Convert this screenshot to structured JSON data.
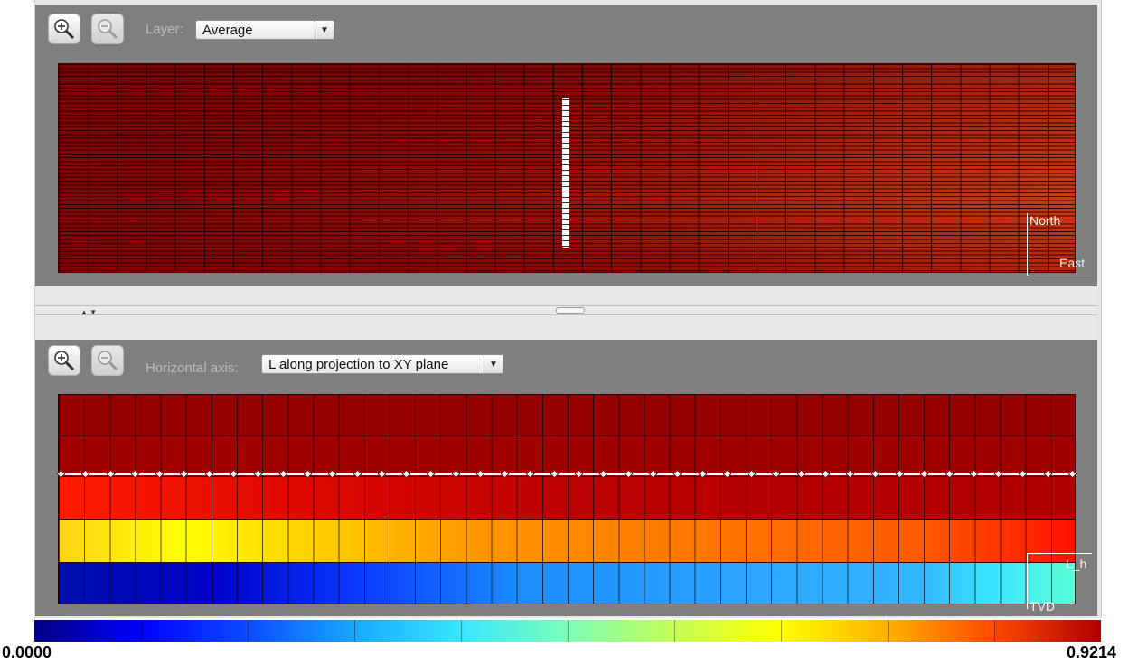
{
  "top_panel": {
    "layer_label": "Layer:",
    "layer_value": "Average",
    "north_label": "North",
    "east_label": "East"
  },
  "bottom_panel": {
    "horizontal_axis_label": "Horizontal axis:",
    "horizontal_axis_value": "L along projection to XY plane",
    "lh_label": "L_h",
    "tvd_label": "TVD"
  },
  "colorbar": {
    "min_label": "0.0000",
    "max_label": "0.9214"
  },
  "icons": {
    "zoom_in": "zoom-in-icon",
    "zoom_out": "zoom-out-icon",
    "dropdown": "chevron-down-icon"
  },
  "colors": {
    "panel_bg": "#7f7f7f",
    "colormap_low": "#000080",
    "colormap_high": "#b00000"
  }
}
